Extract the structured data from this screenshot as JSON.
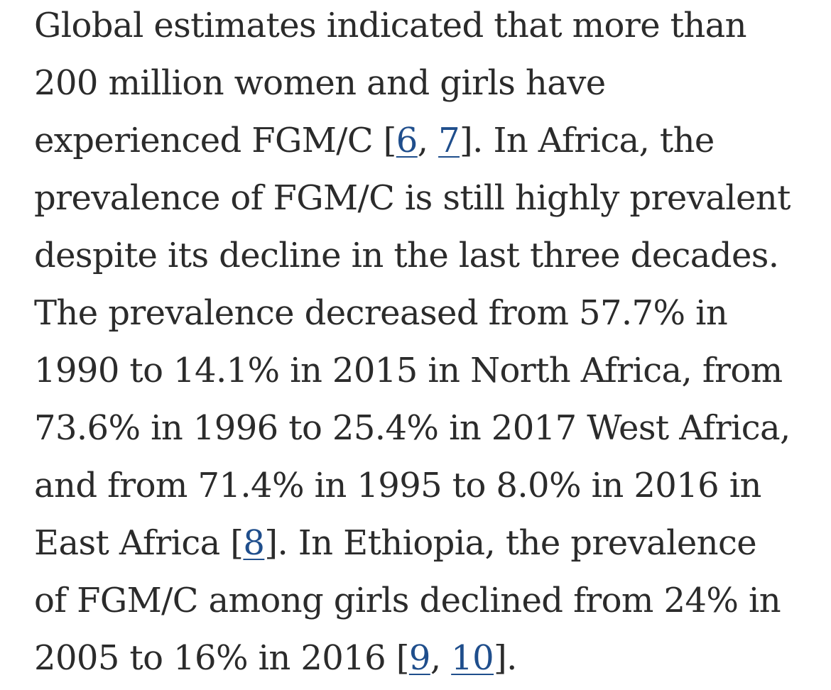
{
  "paragraph": {
    "l1": "Global estimates indicated that more than",
    "l2": "200 million women and girls have",
    "l3_a": "experienced FGM/C [",
    "l3_b": ", ",
    "l3_c": "]. In Africa, the",
    "l4": "prevalence of FGM/C is still highly prevalent",
    "l5": "despite its decline in the last three decades.",
    "l6": "The prevalence decreased from 57.7% in",
    "l7": "1990 to 14.1% in 2015 in North Africa, from",
    "l8": "73.6% in 1996 to 25.4% in 2017 West Africa,",
    "l9": "and from 71.4% in 1995 to 8.0% in 2016 in",
    "l10_a": "East Africa [",
    "l10_b": "]. In Ethiopia, the prevalence",
    "l11": "of FGM/C among girls declined from 24% in",
    "l12_a": "2005 to 16% in 2016 [",
    "l12_b": ", ",
    "l12_c": "]."
  },
  "citations": {
    "c6": "6",
    "c7": "7",
    "c8": "8",
    "c9": "9",
    "c10": "10"
  },
  "colors": {
    "text": "#2b2b2b",
    "link": "#1f4e8c"
  }
}
